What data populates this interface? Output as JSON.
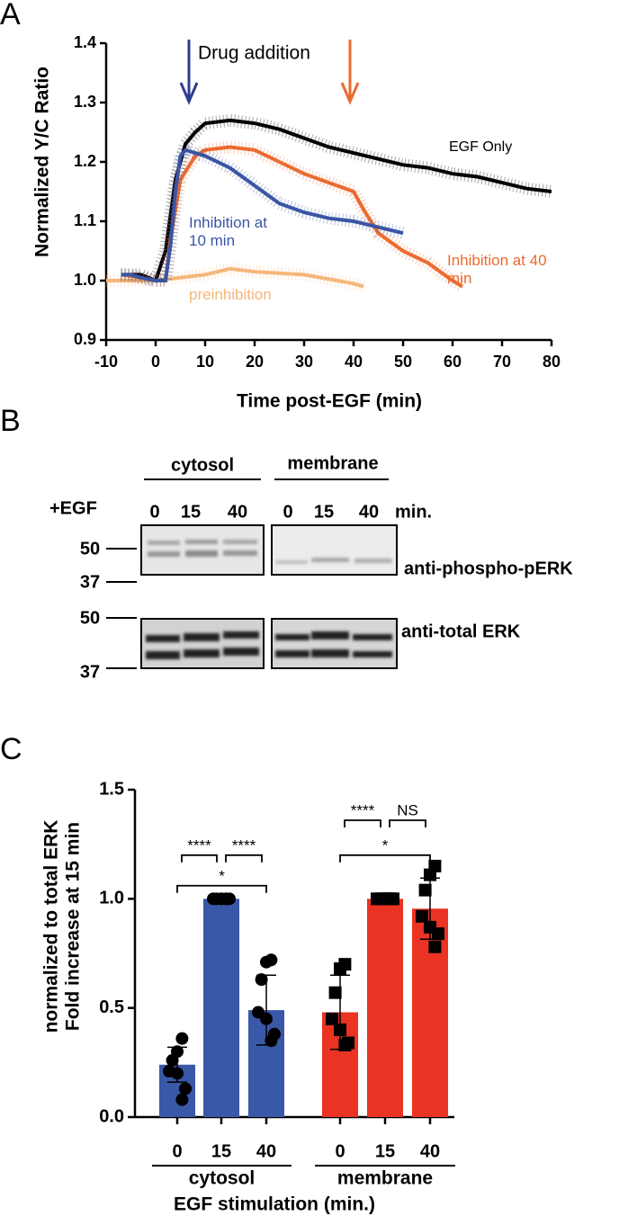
{
  "panel_a": {
    "letter": "A",
    "chart_data": {
      "type": "line",
      "y_label": "Normalized Y/C Ratio",
      "x_label": "Time post-EGF (min)",
      "annotation": "Drug addition",
      "xlim": [
        -10,
        80
      ],
      "xticks": [
        -10,
        0,
        10,
        20,
        30,
        40,
        50,
        60,
        70,
        80
      ],
      "ylim": [
        0.9,
        1.4
      ],
      "yticks": [
        {
          "value": 0.9,
          "label": "0.9"
        },
        {
          "value": 1.0,
          "label": "1.0"
        },
        {
          "value": 1.1,
          "label": "1.1"
        },
        {
          "value": 1.2,
          "label": "1.2"
        },
        {
          "value": 1.3,
          "label": "1.3"
        },
        {
          "value": 1.4,
          "label": "1.4"
        }
      ],
      "series": [
        {
          "name": "EGF Only",
          "color": "#000000",
          "x": [
            -7,
            -5,
            -3,
            0,
            2,
            4,
            6,
            8,
            10,
            15,
            20,
            25,
            30,
            35,
            40,
            45,
            50,
            55,
            60,
            65,
            70,
            75,
            80
          ],
          "values": [
            1.01,
            1.01,
            1.01,
            1.0,
            1.05,
            1.17,
            1.23,
            1.25,
            1.265,
            1.27,
            1.265,
            1.255,
            1.24,
            1.225,
            1.215,
            1.205,
            1.195,
            1.19,
            1.18,
            1.175,
            1.165,
            1.155,
            1.15
          ]
        },
        {
          "name": "Inhibition at 10 min",
          "color": "#3a55a4",
          "x": [
            -7,
            -5,
            -3,
            0,
            2,
            3,
            4,
            5,
            6,
            8,
            10,
            15,
            20,
            25,
            30,
            35,
            40,
            45,
            50
          ],
          "values": [
            1.01,
            1.01,
            1.005,
            1.0,
            1.0,
            1.06,
            1.15,
            1.21,
            1.22,
            1.215,
            1.21,
            1.19,
            1.16,
            1.13,
            1.115,
            1.105,
            1.1,
            1.09,
            1.08
          ]
        },
        {
          "name": "Inhibition at 40 min",
          "color": "#ec6a2f",
          "x": [
            -7,
            -3,
            0,
            2,
            3,
            5,
            8,
            10,
            15,
            20,
            25,
            30,
            35,
            40,
            42,
            45,
            50,
            55,
            60,
            62
          ],
          "values": [
            1.01,
            1.005,
            1.0,
            1.0,
            1.07,
            1.17,
            1.21,
            1.22,
            1.225,
            1.22,
            1.2,
            1.18,
            1.165,
            1.15,
            1.12,
            1.08,
            1.05,
            1.03,
            1.0,
            0.99
          ]
        },
        {
          "name": "preinhibition",
          "color": "#f5b77a",
          "x": [
            -10,
            0,
            10,
            15,
            20,
            30,
            40,
            42
          ],
          "values": [
            1.0,
            1.0,
            1.01,
            1.02,
            1.015,
            1.01,
            0.995,
            0.99
          ]
        }
      ]
    }
  },
  "panel_b": {
    "letter": "B",
    "groups": [
      "cytosol",
      "membrane"
    ],
    "treatment": "+EGF",
    "times": [
      "0",
      "15",
      "40",
      "0",
      "15",
      "40"
    ],
    "unit": "min.",
    "markers": [
      "50",
      "37",
      "50",
      "37"
    ],
    "rows": [
      "anti-phospho-pERK",
      "anti-total ERK"
    ]
  },
  "panel_c": {
    "letter": "C",
    "chart_data": {
      "type": "bar",
      "y_label": [
        "Fold increase at 15 min",
        "normalized to total ERK"
      ],
      "x_label": "EGF stimulation (min.)",
      "categories": [
        "0",
        "15",
        "40"
      ],
      "ylim": [
        0,
        1.5
      ],
      "yticks": [
        {
          "value": 0,
          "label": "0.0"
        },
        {
          "value": 0.5,
          "label": "0.5"
        },
        {
          "value": 1.0,
          "label": "1.0"
        },
        {
          "value": 1.5,
          "label": "1.5"
        }
      ],
      "series": [
        {
          "name": "cytosol",
          "color": "#3a58a8",
          "marker": "circle",
          "values": [
            0.24,
            1.0,
            0.49
          ],
          "errors": [
            0.08,
            0.005,
            0.16
          ],
          "points": [
            [
              0.36,
              0.3,
              0.26,
              0.21,
              0.2,
              0.13,
              0.08
            ],
            [
              1,
              1,
              1,
              1,
              1,
              1,
              1
            ],
            [
              0.72,
              0.71,
              0.63,
              0.48,
              0.45,
              0.38,
              0.35
            ]
          ]
        },
        {
          "name": "membrane",
          "color": "#ea3323",
          "marker": "square",
          "values": [
            0.48,
            1.0,
            0.955
          ],
          "errors": [
            0.17,
            0.005,
            0.14
          ],
          "points": [
            [
              0.7,
              0.68,
              0.57,
              0.45,
              0.4,
              0.34,
              0.33
            ],
            [
              1,
              1,
              1,
              1,
              1,
              1,
              1
            ],
            [
              1.15,
              1.11,
              1.04,
              0.92,
              0.87,
              0.84,
              0.78
            ]
          ]
        }
      ],
      "brackets": [
        {
          "series": 0,
          "from": 0,
          "to": 1,
          "y": 1.2,
          "label": "****"
        },
        {
          "series": 0,
          "from": 1,
          "to": 2,
          "y": 1.2,
          "label": "****"
        },
        {
          "series": 0,
          "from": 0,
          "to": 2,
          "y": 1.06,
          "label": "*"
        },
        {
          "series": 1,
          "from": 0,
          "to": 1,
          "y": 1.36,
          "label": "****"
        },
        {
          "series": 1,
          "from": 1,
          "to": 2,
          "y": 1.36,
          "label": "NS"
        },
        {
          "series": 1,
          "from": 0,
          "to": 2,
          "y": 1.2,
          "label": "*"
        }
      ]
    }
  }
}
